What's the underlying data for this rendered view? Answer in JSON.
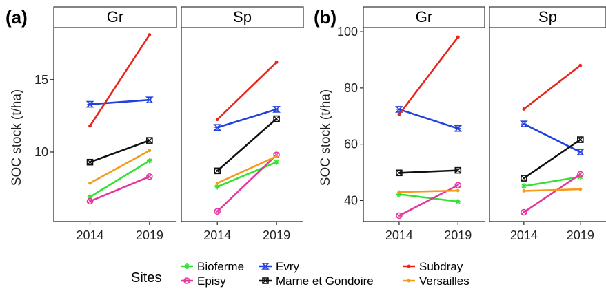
{
  "chart_data": [
    {
      "type": "line",
      "panel_label": "(a)",
      "ylabel": "SOC stock (t/ha)",
      "xlabel": "",
      "ylim": [
        5.2,
        18.6
      ],
      "yticks": [
        10,
        15
      ],
      "facets": [
        {
          "strip": "Gr",
          "categories": [
            "2014",
            "2019"
          ],
          "series": [
            {
              "name": "Bioferme",
              "values": [
                6.9,
                9.4
              ]
            },
            {
              "name": "Episy",
              "values": [
                6.6,
                8.3
              ]
            },
            {
              "name": "Evry",
              "values": [
                13.3,
                13.6
              ]
            },
            {
              "name": "Marne et Gondoire",
              "values": [
                9.3,
                10.8
              ]
            },
            {
              "name": "Subdray",
              "values": [
                11.8,
                18.1
              ]
            },
            {
              "name": "Versailles",
              "values": [
                7.85,
                10.1
              ]
            }
          ]
        },
        {
          "strip": "Sp",
          "categories": [
            "2014",
            "2019"
          ],
          "series": [
            {
              "name": "Bioferme",
              "values": [
                7.6,
                9.3
              ]
            },
            {
              "name": "Episy",
              "values": [
                5.9,
                9.8
              ]
            },
            {
              "name": "Evry",
              "values": [
                11.7,
                12.95
              ]
            },
            {
              "name": "Marne et Gondoire",
              "values": [
                8.7,
                12.3
              ]
            },
            {
              "name": "Subdray",
              "values": [
                12.25,
                16.2
              ]
            },
            {
              "name": "Versailles",
              "values": [
                7.85,
                9.7
              ]
            }
          ]
        }
      ]
    },
    {
      "type": "line",
      "panel_label": "(b)",
      "ylabel": "SOC stock (t/ha)",
      "xlabel": "",
      "ylim": [
        32.5,
        101.5
      ],
      "yticks": [
        40,
        60,
        80,
        100
      ],
      "facets": [
        {
          "strip": "Gr",
          "categories": [
            "2014",
            "2019"
          ],
          "series": [
            {
              "name": "Bioferme",
              "values": [
                42.2,
                39.6
              ]
            },
            {
              "name": "Episy",
              "values": [
                34.6,
                45.4
              ]
            },
            {
              "name": "Evry",
              "values": [
                72.4,
                65.6
              ]
            },
            {
              "name": "Marne et Gondoire",
              "values": [
                49.8,
                50.7
              ]
            },
            {
              "name": "Subdray",
              "values": [
                70.6,
                98.1
              ]
            },
            {
              "name": "Versailles",
              "values": [
                43.0,
                43.5
              ]
            }
          ]
        },
        {
          "strip": "Sp",
          "categories": [
            "2014",
            "2019"
          ],
          "series": [
            {
              "name": "Bioferme",
              "values": [
                45.1,
                48.4
              ]
            },
            {
              "name": "Episy",
              "values": [
                35.8,
                49.3
              ]
            },
            {
              "name": "Evry",
              "values": [
                67.2,
                57.2
              ]
            },
            {
              "name": "Marne et Gondoire",
              "values": [
                47.9,
                61.6
              ]
            },
            {
              "name": "Subdray",
              "values": [
                72.5,
                88.0
              ]
            },
            {
              "name": "Versailles",
              "values": [
                43.4,
                44.0
              ]
            }
          ]
        }
      ]
    }
  ],
  "legend": {
    "title": "Sites",
    "placement": "bottom",
    "items": [
      {
        "name": "Bioferme",
        "color": "#33e233",
        "marker": "asterisk"
      },
      {
        "name": "Episy",
        "color": "#e6379e",
        "marker": "circle-cross"
      },
      {
        "name": "Evry",
        "color": "#2240dc",
        "marker": "hourglass"
      },
      {
        "name": "Marne et Gondoire",
        "color": "#111111",
        "marker": "square-cross"
      },
      {
        "name": "Subdray",
        "color": "#e8251a",
        "marker": "dot"
      },
      {
        "name": "Versailles",
        "color": "#f59b1c",
        "marker": "dot"
      }
    ]
  },
  "grid": false
}
